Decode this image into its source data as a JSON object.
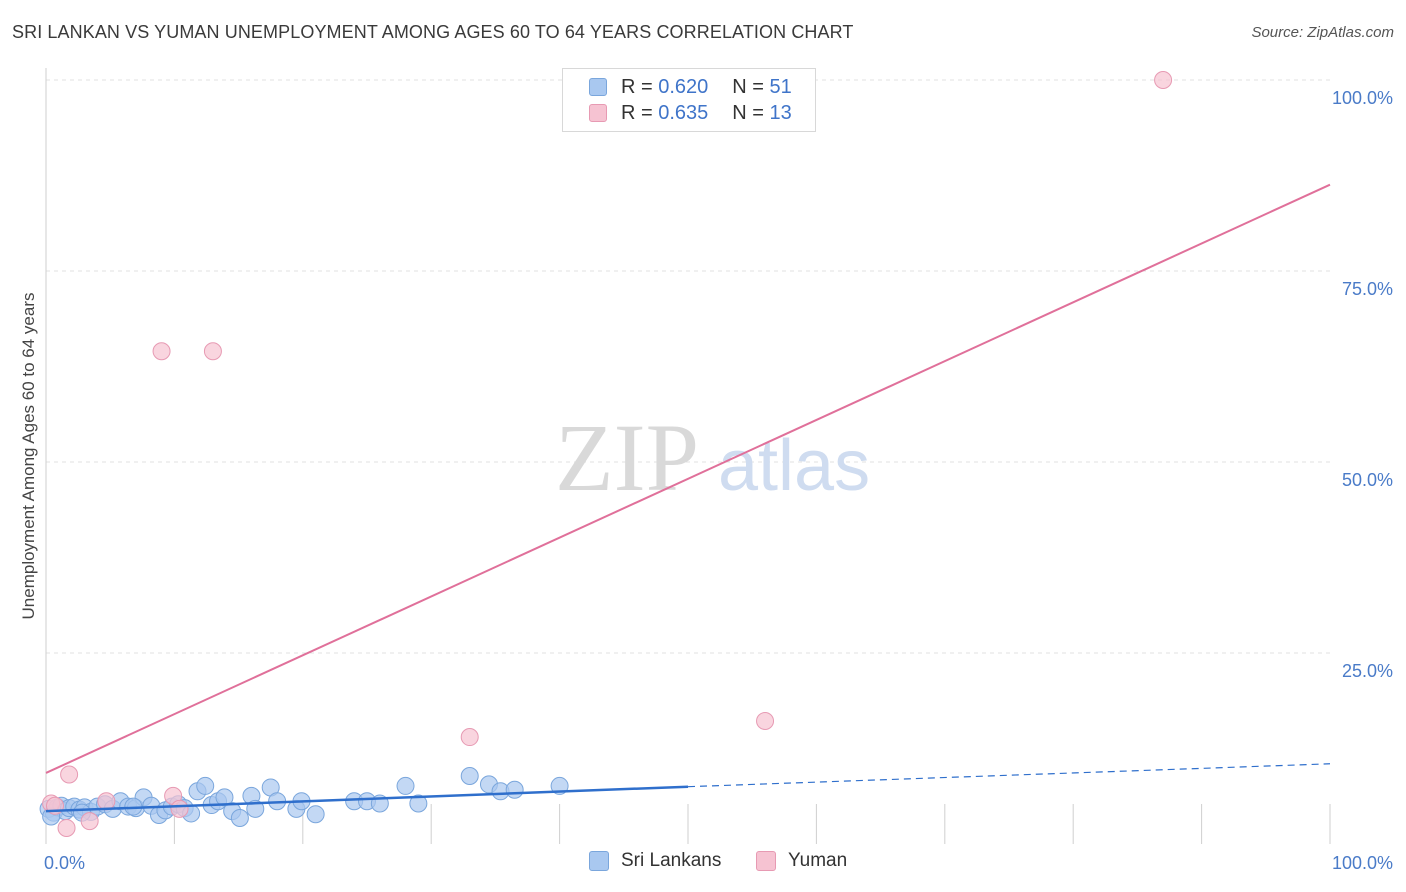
{
  "title": "SRI LANKAN VS YUMAN UNEMPLOYMENT AMONG AGES 60 TO 64 YEARS CORRELATION CHART",
  "source": "Source: ZipAtlas.com",
  "watermark": {
    "zip": "ZIP",
    "atlas": "atlas"
  },
  "legend": {
    "r_label": "R =",
    "n_label": "N =",
    "rows": [
      {
        "name": "Sri Lankans",
        "r": "0.620",
        "n": "51",
        "color": "#a9c8f0",
        "stroke": "#7aa6dc"
      },
      {
        "name": "Yuman",
        "r": "0.635",
        "n": "13",
        "color": "#f6c3d2",
        "stroke": "#e79ab3"
      }
    ]
  },
  "chart_data": {
    "type": "scatter",
    "title": "SRI LANKAN VS YUMAN UNEMPLOYMENT AMONG AGES 60 TO 64 YEARS CORRELATION CHART",
    "xlabel": "",
    "ylabel": "Unemployment Among Ages 60 to 64 years",
    "xlim": [
      0,
      100
    ],
    "ylim": [
      0,
      100
    ],
    "x_tick_labels": [
      "0.0%",
      "100.0%"
    ],
    "y_ticks": [
      25,
      50,
      75,
      100
    ],
    "y_tick_labels": [
      "25.0%",
      "50.0%",
      "75.0%",
      "100.0%"
    ],
    "grid": true,
    "series": [
      {
        "name": "Sri Lankans",
        "color": "#a9c8f0",
        "stroke": "#7aa6dc",
        "trend_color": "#2f6fcc",
        "trend": {
          "x0": 0,
          "y0": 4.3,
          "x1": 50,
          "y1": 7.5,
          "dashed_to": 100,
          "y_dashed_end": 10.5
        },
        "points": [
          [
            0.2,
            4.6
          ],
          [
            0.6,
            4.1
          ],
          [
            0.9,
            4.8
          ],
          [
            1.2,
            5.0
          ],
          [
            1.5,
            4.3
          ],
          [
            1.8,
            4.7
          ],
          [
            2.2,
            4.9
          ],
          [
            2.6,
            4.5
          ],
          [
            3.0,
            4.8
          ],
          [
            3.5,
            4.2
          ],
          [
            4.0,
            4.9
          ],
          [
            4.6,
            5.2
          ],
          [
            5.2,
            4.6
          ],
          [
            5.8,
            5.6
          ],
          [
            6.4,
            4.9
          ],
          [
            7.0,
            4.7
          ],
          [
            7.6,
            6.1
          ],
          [
            8.2,
            5.0
          ],
          [
            8.8,
            3.8
          ],
          [
            9.3,
            4.4
          ],
          [
            9.8,
            4.9
          ],
          [
            10.3,
            5.2
          ],
          [
            10.8,
            4.7
          ],
          [
            11.3,
            4.0
          ],
          [
            11.8,
            6.9
          ],
          [
            12.4,
            7.6
          ],
          [
            12.9,
            5.1
          ],
          [
            13.4,
            5.6
          ],
          [
            13.9,
            6.1
          ],
          [
            14.5,
            4.3
          ],
          [
            15.1,
            3.4
          ],
          [
            16.0,
            6.3
          ],
          [
            16.3,
            4.6
          ],
          [
            17.5,
            7.4
          ],
          [
            18.0,
            5.6
          ],
          [
            19.5,
            4.6
          ],
          [
            19.9,
            5.6
          ],
          [
            21.0,
            3.9
          ],
          [
            24.0,
            5.6
          ],
          [
            25.0,
            5.6
          ],
          [
            26.0,
            5.3
          ],
          [
            28.0,
            7.6
          ],
          [
            29.0,
            5.3
          ],
          [
            33.0,
            8.9
          ],
          [
            34.5,
            7.8
          ],
          [
            35.4,
            6.9
          ],
          [
            36.5,
            7.1
          ],
          [
            40.0,
            7.6
          ],
          [
            0.4,
            3.6
          ],
          [
            2.8,
            4.1
          ],
          [
            6.8,
            4.9
          ]
        ]
      },
      {
        "name": "Yuman",
        "color": "#f6c3d2",
        "stroke": "#e79ab3",
        "trend_color": "#e0709a",
        "trend": {
          "x0": 0,
          "y0": 9.3,
          "x1": 100,
          "y1": 86.3
        },
        "points": [
          [
            0.4,
            5.3
          ],
          [
            0.7,
            5.0
          ],
          [
            1.6,
            2.1
          ],
          [
            1.8,
            9.1
          ],
          [
            3.4,
            3.0
          ],
          [
            4.7,
            5.6
          ],
          [
            9.0,
            64.5
          ],
          [
            9.9,
            6.3
          ],
          [
            10.4,
            4.6
          ],
          [
            13.0,
            64.5
          ],
          [
            33.0,
            14.0
          ],
          [
            56.0,
            16.1
          ],
          [
            87.0,
            100.0
          ]
        ]
      }
    ]
  }
}
